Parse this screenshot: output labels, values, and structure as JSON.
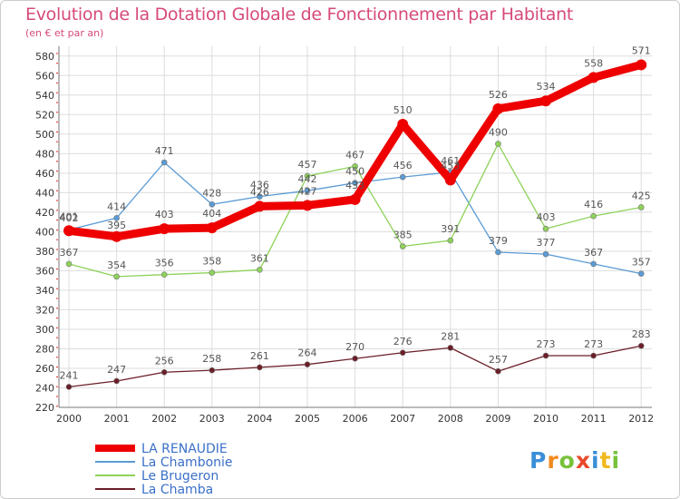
{
  "header": {
    "title": "Evolution de la Dotation Globale de Fonctionnement par Habitant",
    "subtitle": "(en € et par an)"
  },
  "logo": {
    "letters": [
      {
        "char": "P",
        "color": "#3a8fd8"
      },
      {
        "char": "r",
        "color": "#f08a1c"
      },
      {
        "char": "o",
        "color": "#78c23a"
      },
      {
        "char": "x",
        "color": "#e84a2c"
      },
      {
        "char": "i",
        "color": "#3a8fd8"
      },
      {
        "char": "t",
        "color": "#f0b81c"
      },
      {
        "char": "i",
        "color": "#78c23a"
      }
    ]
  },
  "chart_data": {
    "type": "line",
    "title": "Evolution de la Dotation Globale de Fonctionnement par Habitant",
    "subtitle": "(en € et par an)",
    "xlabel": "",
    "ylabel": "",
    "ylim": [
      220,
      590
    ],
    "yticks": [
      220,
      240,
      260,
      280,
      300,
      320,
      340,
      360,
      380,
      400,
      420,
      440,
      460,
      480,
      500,
      520,
      540,
      560,
      580
    ],
    "categories": [
      "2000",
      "2001",
      "2002",
      "2003",
      "2004",
      "2005",
      "2006",
      "2007",
      "2008",
      "2009",
      "2010",
      "2011",
      "2012"
    ],
    "grid": true,
    "legend_position": "bottom-left",
    "series": [
      {
        "name": "La Chambonie",
        "color": "#5b9bd5",
        "values": [
          402,
          414,
          471,
          428,
          436,
          442,
          450,
          456,
          461,
          379,
          377,
          367,
          357
        ]
      },
      {
        "name": "Le Brugeron",
        "color": "#8ed25a",
        "values": [
          367,
          354,
          356,
          358,
          361,
          457,
          467,
          385,
          391,
          490,
          403,
          416,
          425
        ]
      },
      {
        "name": "La Chamba",
        "color": "#6b1e28",
        "values": [
          241,
          247,
          256,
          258,
          261,
          264,
          270,
          276,
          281,
          257,
          273,
          273,
          283
        ]
      },
      {
        "name": "LA RENAUDIE",
        "color": "#ee0000",
        "values": [
          401,
          395,
          403,
          404,
          426,
          427,
          433,
          510,
          453,
          526,
          534,
          558,
          571
        ]
      }
    ],
    "legend_order": [
      "LA RENAUDIE",
      "La Chambonie",
      "Le Brugeron",
      "La Chamba"
    ],
    "label_color": "#555555",
    "legend_text_color": "#3a6fc8"
  }
}
